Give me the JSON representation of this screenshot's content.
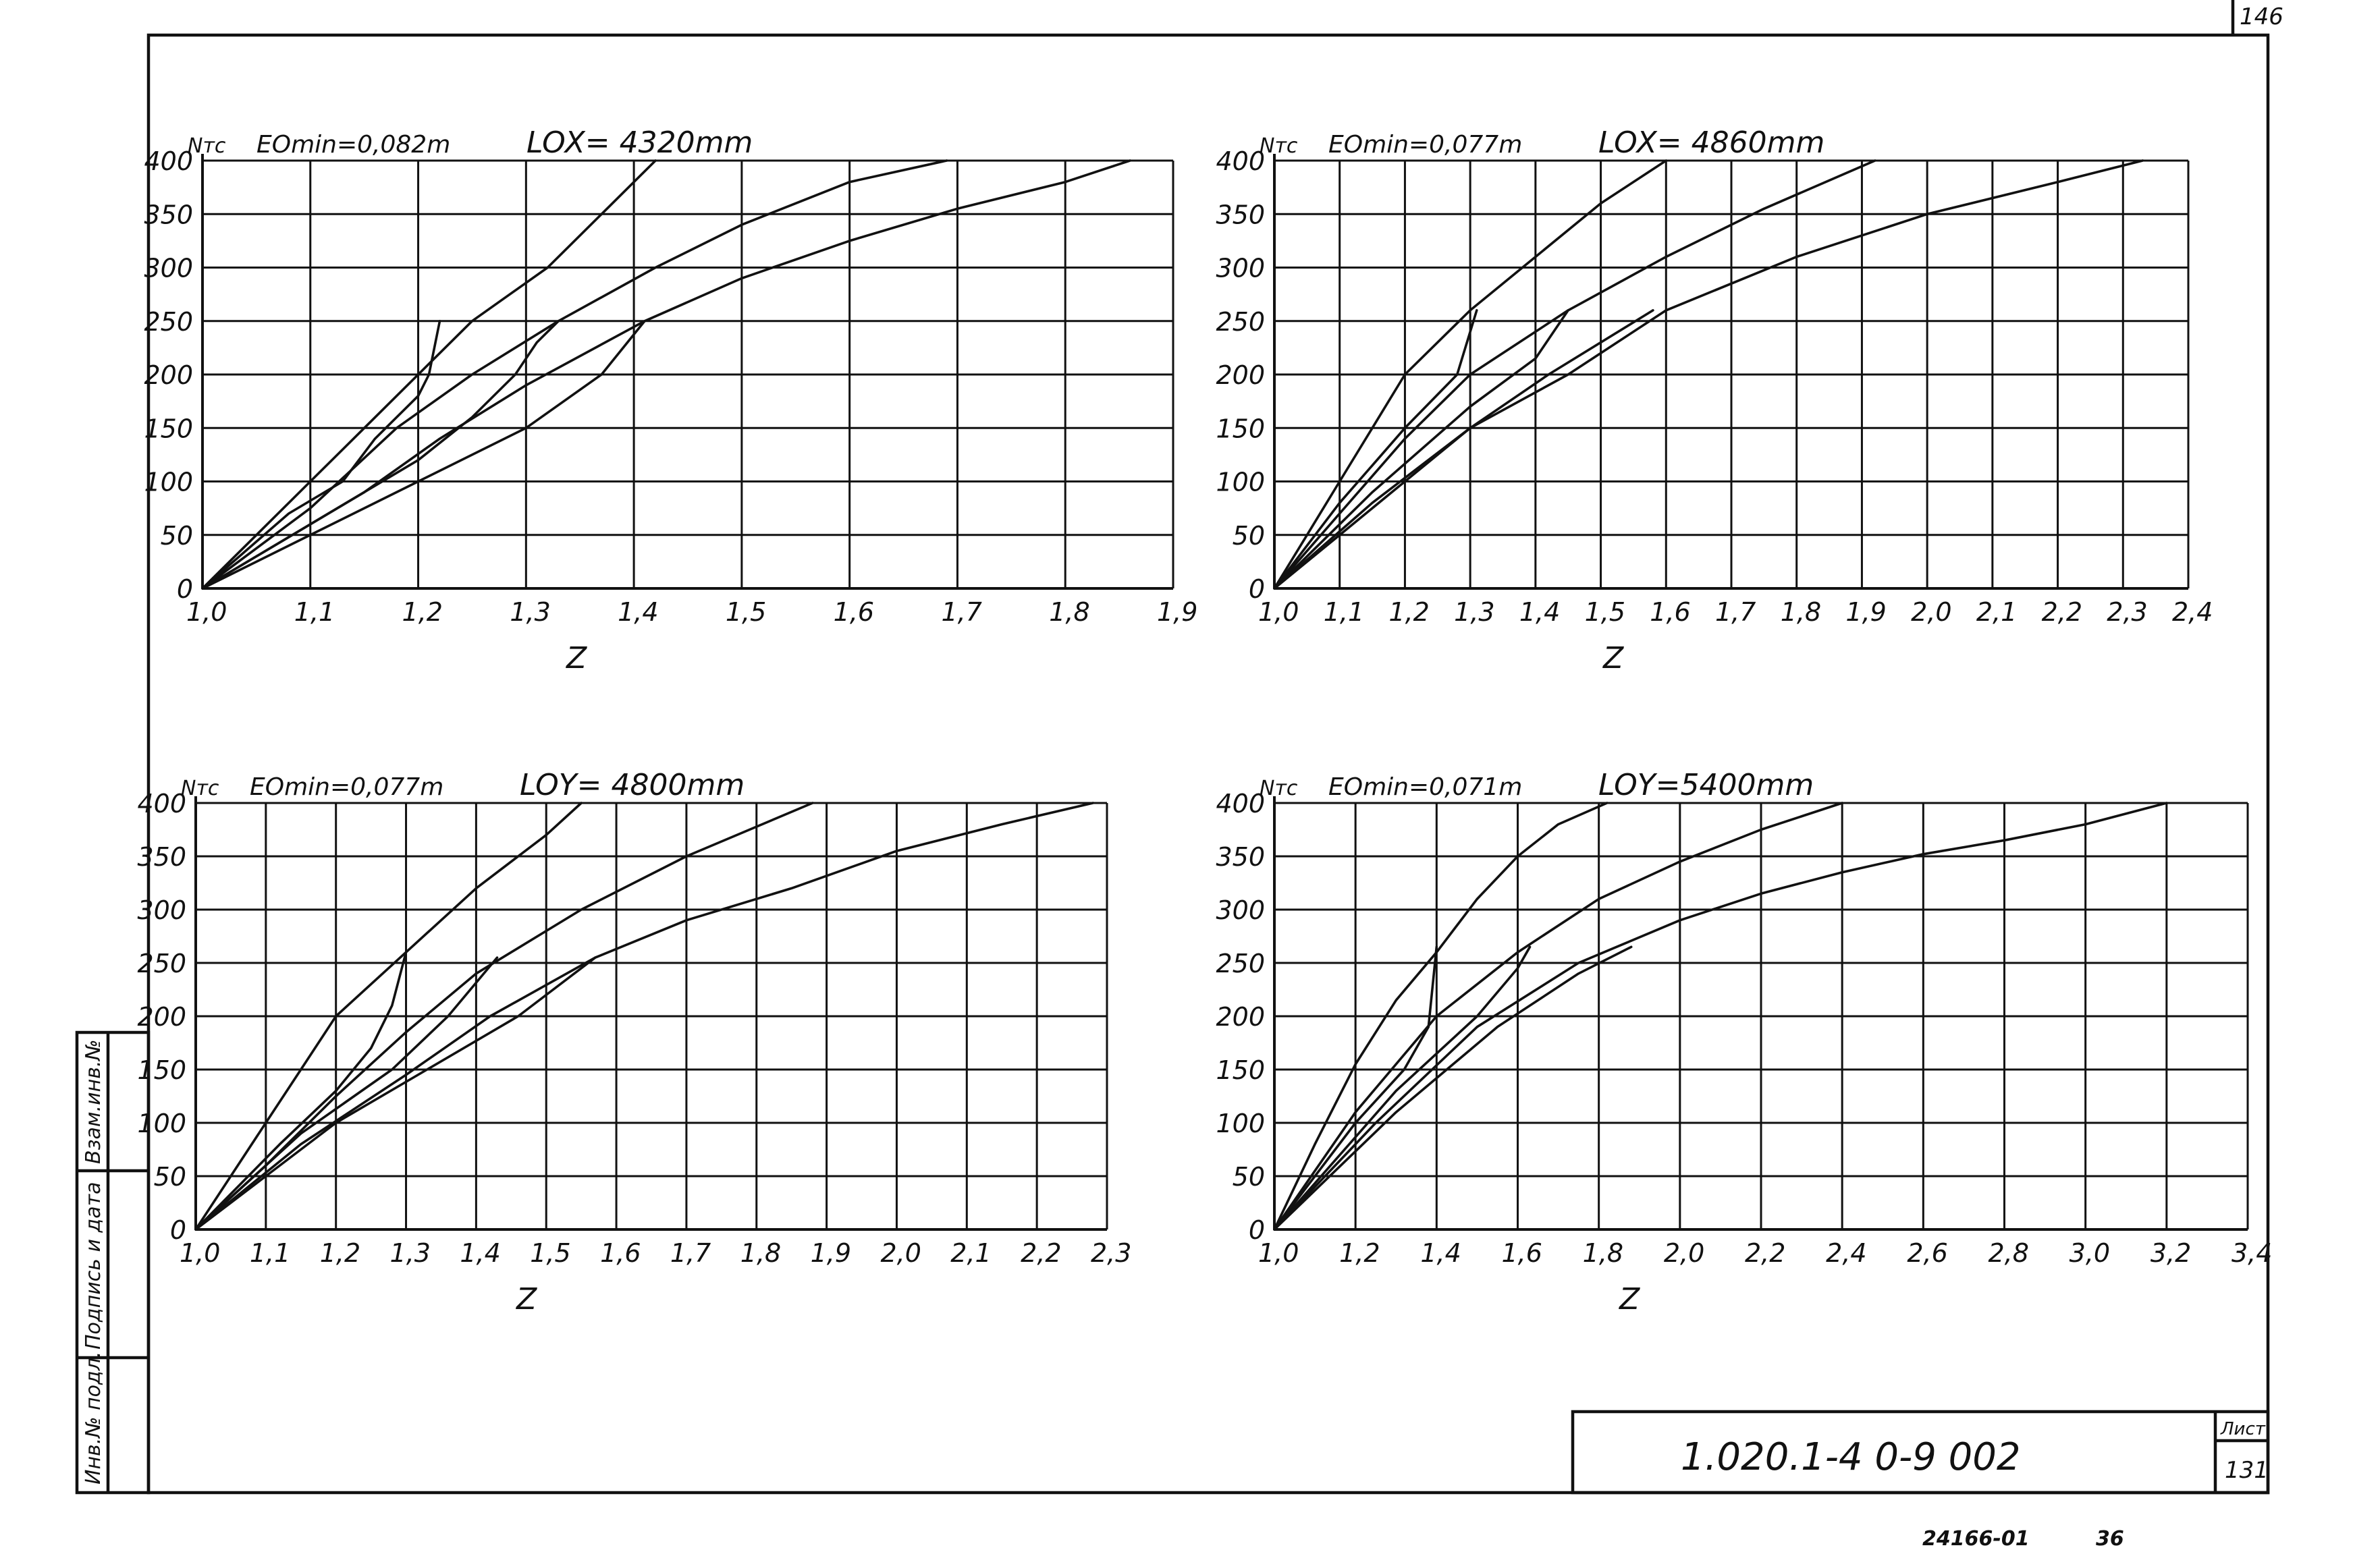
{
  "sheet": {
    "page_corner": "146",
    "doc_code": "1.020.1-4 0-9 002",
    "sheet_label": "Лист",
    "sheet_number": "131",
    "archive_number": "24166-01",
    "archive_page": "36",
    "margin_labels": [
      "Инв.№ подл.",
      "Подпись и дата",
      "Взам.инв.№"
    ]
  },
  "chart_data": [
    {
      "type": "line",
      "ylabel": "Nтс",
      "emin_label": "EOmin=0,082m",
      "length_label": "LOX= 4320mm",
      "xlabel": "Z",
      "xlim": [
        1.0,
        1.9
      ],
      "ylim": [
        0,
        400
      ],
      "x_ticks": [
        "1,0",
        "1,1",
        "1,2",
        "1,3",
        "1,4",
        "1,5",
        "1,6",
        "1,7",
        "1,8",
        "1,9"
      ],
      "y_ticks": [
        "0",
        "50",
        "100",
        "150",
        "200",
        "250",
        "300",
        "350",
        "400"
      ],
      "grid": true,
      "series": [
        {
          "points": [
            [
              1.0,
              0
            ],
            [
              1.05,
              50
            ],
            [
              1.1,
              100
            ],
            [
              1.15,
              150
            ],
            [
              1.2,
              200
            ],
            [
              1.25,
              250
            ],
            [
              1.32,
              300
            ],
            [
              1.37,
              350
            ],
            [
              1.42,
              400
            ]
          ]
        },
        {
          "points": [
            [
              1.0,
              0
            ],
            [
              1.1,
              75
            ],
            [
              1.18,
              150
            ],
            [
              1.25,
              200
            ],
            [
              1.33,
              250
            ],
            [
              1.42,
              300
            ],
            [
              1.5,
              340
            ],
            [
              1.6,
              380
            ],
            [
              1.69,
              400
            ]
          ]
        },
        {
          "points": [
            [
              1.0,
              0
            ],
            [
              1.1,
              50
            ],
            [
              1.2,
              100
            ],
            [
              1.3,
              150
            ],
            [
              1.37,
              200
            ],
            [
              1.41,
              250
            ],
            [
              1.5,
              290
            ],
            [
              1.6,
              325
            ],
            [
              1.7,
              355
            ],
            [
              1.8,
              380
            ],
            [
              1.86,
              400
            ]
          ]
        },
        {
          "points": [
            [
              1.0,
              0
            ],
            [
              1.08,
              70
            ],
            [
              1.13,
              100
            ],
            [
              1.16,
              140
            ],
            [
              1.18,
              160
            ],
            [
              1.2,
              180
            ],
            [
              1.21,
              200
            ],
            [
              1.22,
              250
            ]
          ]
        },
        {
          "points": [
            [
              1.0,
              0
            ],
            [
              1.1,
              60
            ],
            [
              1.2,
              120
            ],
            [
              1.25,
              160
            ],
            [
              1.29,
              200
            ],
            [
              1.31,
              230
            ],
            [
              1.33,
              250
            ]
          ]
        },
        {
          "points": [
            [
              1.0,
              0
            ],
            [
              1.15,
              90
            ],
            [
              1.22,
              140
            ],
            [
              1.3,
              190
            ],
            [
              1.41,
              250
            ]
          ]
        }
      ]
    },
    {
      "type": "line",
      "ylabel": "Nтс",
      "emin_label": "EOmin=0,077m",
      "length_label": "LOX= 4860mm",
      "xlabel": "Z",
      "xlim": [
        1.0,
        2.4
      ],
      "ylim": [
        0,
        400
      ],
      "x_ticks": [
        "1,0",
        "1,1",
        "1,2",
        "1,3",
        "1,4",
        "1,5",
        "1,6",
        "1,7",
        "1,8",
        "1,9",
        "2,0",
        "2,1",
        "2,2",
        "2,3",
        "2,4"
      ],
      "y_ticks": [
        "0",
        "50",
        "100",
        "150",
        "200",
        "250",
        "300",
        "350",
        "400"
      ],
      "grid": true,
      "series": [
        {
          "points": [
            [
              1.0,
              0
            ],
            [
              1.05,
              50
            ],
            [
              1.1,
              100
            ],
            [
              1.15,
              150
            ],
            [
              1.2,
              200
            ],
            [
              1.3,
              260
            ],
            [
              1.4,
              310
            ],
            [
              1.5,
              360
            ],
            [
              1.6,
              400
            ]
          ]
        },
        {
          "points": [
            [
              1.0,
              0
            ],
            [
              1.1,
              70
            ],
            [
              1.2,
              140
            ],
            [
              1.3,
              200
            ],
            [
              1.45,
              260
            ],
            [
              1.6,
              310
            ],
            [
              1.75,
              355
            ],
            [
              1.92,
              400
            ]
          ]
        },
        {
          "points": [
            [
              1.0,
              0
            ],
            [
              1.1,
              50
            ],
            [
              1.2,
              100
            ],
            [
              1.3,
              150
            ],
            [
              1.45,
              200
            ],
            [
              1.6,
              260
            ],
            [
              1.8,
              310
            ],
            [
              2.0,
              350
            ],
            [
              2.2,
              380
            ],
            [
              2.33,
              400
            ]
          ]
        },
        {
          "points": [
            [
              1.0,
              0
            ],
            [
              1.1,
              80
            ],
            [
              1.2,
              150
            ],
            [
              1.28,
              200
            ],
            [
              1.31,
              260
            ]
          ]
        },
        {
          "points": [
            [
              1.0,
              0
            ],
            [
              1.15,
              90
            ],
            [
              1.3,
              170
            ],
            [
              1.4,
              215
            ],
            [
              1.45,
              260
            ]
          ]
        },
        {
          "points": [
            [
              1.0,
              0
            ],
            [
              1.15,
              80
            ],
            [
              1.3,
              150
            ],
            [
              1.42,
              200
            ],
            [
              1.58,
              260
            ]
          ]
        }
      ]
    },
    {
      "type": "line",
      "ylabel": "Nтс",
      "emin_label": "EOmin=0,077m",
      "length_label": "LOY= 4800mm",
      "xlabel": "Z",
      "xlim": [
        1.0,
        2.3
      ],
      "ylim": [
        0,
        400
      ],
      "x_ticks": [
        "1,0",
        "1,1",
        "1,2",
        "1,3",
        "1,4",
        "1,5",
        "1,6",
        "1,7",
        "1,8",
        "1,9",
        "2,0",
        "2,1",
        "2,2",
        "2,3"
      ],
      "y_ticks": [
        "0",
        "50",
        "100",
        "150",
        "200",
        "250",
        "300",
        "350",
        "400"
      ],
      "grid": true,
      "series": [
        {
          "points": [
            [
              1.0,
              0
            ],
            [
              1.05,
              50
            ],
            [
              1.1,
              100
            ],
            [
              1.15,
              150
            ],
            [
              1.2,
              200
            ],
            [
              1.3,
              260
            ],
            [
              1.4,
              320
            ],
            [
              1.5,
              370
            ],
            [
              1.55,
              400
            ]
          ]
        },
        {
          "points": [
            [
              1.0,
              0
            ],
            [
              1.1,
              60
            ],
            [
              1.2,
              125
            ],
            [
              1.3,
              185
            ],
            [
              1.4,
              240
            ],
            [
              1.55,
              300
            ],
            [
              1.7,
              350
            ],
            [
              1.88,
              400
            ]
          ]
        },
        {
          "points": [
            [
              1.0,
              0
            ],
            [
              1.1,
              50
            ],
            [
              1.2,
              100
            ],
            [
              1.33,
              150
            ],
            [
              1.46,
              200
            ],
            [
              1.57,
              255
            ],
            [
              1.7,
              290
            ],
            [
              1.85,
              320
            ],
            [
              2.0,
              355
            ],
            [
              2.15,
              380
            ],
            [
              2.28,
              400
            ]
          ]
        },
        {
          "points": [
            [
              1.0,
              0
            ],
            [
              1.12,
              80
            ],
            [
              1.2,
              130
            ],
            [
              1.25,
              170
            ],
            [
              1.28,
              210
            ],
            [
              1.3,
              260
            ]
          ]
        },
        {
          "points": [
            [
              1.0,
              0
            ],
            [
              1.15,
              90
            ],
            [
              1.28,
              150
            ],
            [
              1.36,
              200
            ],
            [
              1.43,
              255
            ]
          ]
        },
        {
          "points": [
            [
              1.0,
              0
            ],
            [
              1.15,
              80
            ],
            [
              1.3,
              145
            ],
            [
              1.42,
              200
            ],
            [
              1.57,
              255
            ]
          ]
        }
      ]
    },
    {
      "type": "line",
      "ylabel": "Nтс",
      "emin_label": "EOmin=0,071m",
      "length_label": "LOY=5400mm",
      "xlabel": "Z",
      "xlim": [
        1.0,
        3.4
      ],
      "ylim": [
        0,
        400
      ],
      "x_ticks": [
        "1,0",
        "1,2",
        "1,4",
        "1,6",
        "1,8",
        "2,0",
        "2,2",
        "2,4",
        "2,6",
        "2,8",
        "3,0",
        "3,2",
        "3,4"
      ],
      "y_ticks": [
        "0",
        "50",
        "100",
        "150",
        "200",
        "250",
        "300",
        "350",
        "400"
      ],
      "grid": true,
      "series": [
        {
          "points": [
            [
              1.0,
              0
            ],
            [
              1.1,
              80
            ],
            [
              1.2,
              155
            ],
            [
              1.3,
              215
            ],
            [
              1.4,
              260
            ],
            [
              1.5,
              310
            ],
            [
              1.6,
              350
            ],
            [
              1.7,
              380
            ],
            [
              1.82,
              400
            ]
          ]
        },
        {
          "points": [
            [
              1.0,
              0
            ],
            [
              1.2,
              110
            ],
            [
              1.4,
              200
            ],
            [
              1.6,
              260
            ],
            [
              1.8,
              310
            ],
            [
              2.0,
              345
            ],
            [
              2.2,
              375
            ],
            [
              2.4,
              400
            ]
          ]
        },
        {
          "points": [
            [
              1.0,
              0
            ],
            [
              1.25,
              100
            ],
            [
              1.5,
              190
            ],
            [
              1.75,
              250
            ],
            [
              2.0,
              290
            ],
            [
              2.2,
              315
            ],
            [
              2.4,
              335
            ],
            [
              2.6,
              352
            ],
            [
              2.8,
              365
            ],
            [
              3.0,
              380
            ],
            [
              3.2,
              400
            ]
          ]
        },
        {
          "points": [
            [
              1.0,
              0
            ],
            [
              1.2,
              100
            ],
            [
              1.32,
              150
            ],
            [
              1.38,
              190
            ],
            [
              1.4,
              265
            ]
          ]
        },
        {
          "points": [
            [
              1.0,
              0
            ],
            [
              1.3,
              130
            ],
            [
              1.5,
              200
            ],
            [
              1.6,
              245
            ],
            [
              1.63,
              265
            ]
          ]
        },
        {
          "points": [
            [
              1.0,
              0
            ],
            [
              1.3,
              110
            ],
            [
              1.55,
              190
            ],
            [
              1.75,
              240
            ],
            [
              1.88,
              265
            ]
          ]
        }
      ]
    }
  ]
}
